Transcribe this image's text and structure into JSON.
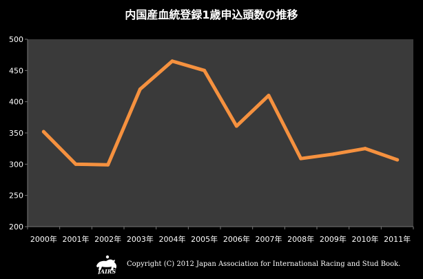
{
  "chart_data": {
    "type": "line",
    "title": "内国産血統登録1歳申込頭数の推移",
    "categories": [
      "2000年",
      "2001年",
      "2002年",
      "2003年",
      "2004年",
      "2005年",
      "2006年",
      "2007年",
      "2008年",
      "2009年",
      "2010年",
      "2011年"
    ],
    "series": [
      {
        "values": [
          352,
          300,
          299,
          420,
          465,
          450,
          361,
          410,
          309,
          316,
          325,
          307
        ]
      }
    ],
    "ylim": [
      200,
      500
    ],
    "yticks": [
      200,
      250,
      300,
      350,
      400,
      450,
      500
    ],
    "grid": false,
    "legend": "none"
  },
  "colors": {
    "background": "#000000",
    "plot_area": "#3a3a3a",
    "line": "#f5913f",
    "text": "#ffffff"
  },
  "footer": {
    "logo_text": "JAIRS",
    "copyright": "Copyright (C) 2012 Japan Association for International Racing and Stud Book."
  }
}
